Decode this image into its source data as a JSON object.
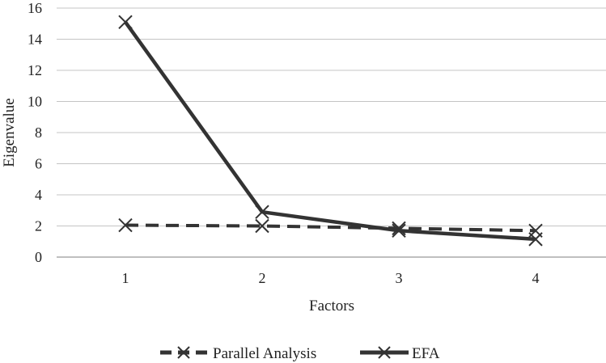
{
  "chart_data": {
    "type": "line",
    "title": "",
    "xlabel": "Factors",
    "ylabel": "Eigenvalue",
    "x": [
      1,
      2,
      3,
      4
    ],
    "categories": [
      "1",
      "2",
      "3",
      "4"
    ],
    "ylim": [
      0,
      16
    ],
    "yticks": [
      "0",
      "2",
      "4",
      "6",
      "8",
      "10",
      "12",
      "14",
      "16"
    ],
    "grid": true,
    "legend_position": "bottom",
    "series": [
      {
        "name": "Parallel Analysis",
        "values": [
          2.05,
          2.0,
          1.85,
          1.7
        ],
        "line_style": "dashed",
        "marker": "x",
        "color": "#333333"
      },
      {
        "name": "EFA",
        "values": [
          15.1,
          2.9,
          1.7,
          1.15
        ],
        "line_style": "solid",
        "marker": "x",
        "color": "#333333"
      }
    ]
  }
}
